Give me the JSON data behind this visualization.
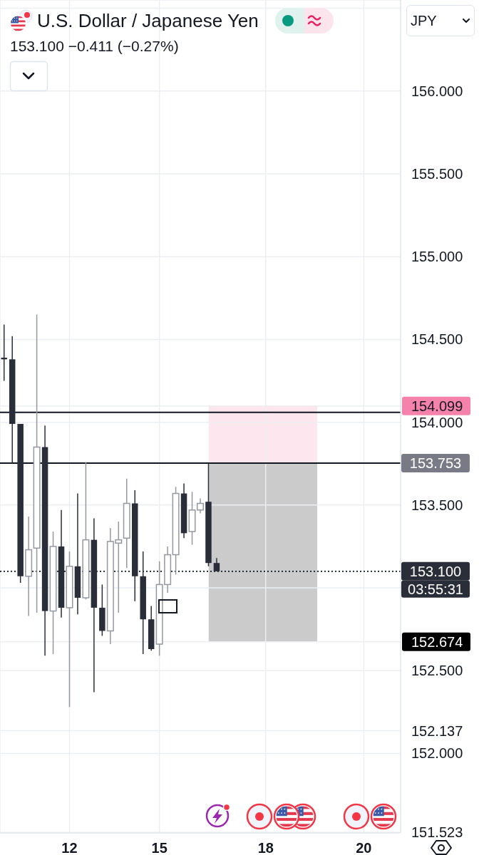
{
  "chart_data": {
    "type": "candlestick",
    "title": "U.S. Dollar / Japanese Yen",
    "subtitle": "153.100 −0.411 (−0.27%)",
    "ylabel": "JPY",
    "categories": [
      null,
      null,
      null,
      null,
      null,
      null,
      null,
      null,
      "12",
      null,
      null,
      null,
      null,
      null,
      null,
      null,
      null,
      null,
      null,
      "15",
      null,
      null,
      null,
      null,
      null,
      null,
      null,
      null,
      null,
      null,
      null,
      null,
      "18",
      null,
      null,
      null,
      null,
      null,
      null,
      null,
      null,
      null,
      null,
      null,
      "20",
      null,
      null,
      null,
      null
    ],
    "ohlc": [
      [
        154.39,
        154.59,
        154.25,
        154.38
      ],
      [
        154.38,
        154.52,
        153.75,
        153.99
      ],
      [
        153.99,
        153.99,
        153.03,
        153.07
      ],
      [
        153.07,
        153.43,
        152.83,
        153.23
      ],
      [
        153.24,
        154.65,
        152.85,
        153.85
      ],
      [
        153.85,
        153.98,
        152.59,
        152.86
      ],
      [
        152.86,
        153.34,
        152.6,
        153.25
      ],
      [
        153.25,
        153.47,
        152.82,
        152.88
      ],
      [
        152.88,
        153.22,
        152.28,
        153.13
      ],
      [
        153.13,
        153.57,
        152.84,
        152.94
      ],
      [
        152.94,
        153.76,
        152.93,
        153.29
      ],
      [
        153.29,
        153.42,
        152.37,
        152.88
      ],
      [
        152.88,
        153.02,
        152.71,
        152.74
      ],
      [
        152.74,
        153.36,
        152.66,
        153.28
      ],
      [
        153.27,
        153.4,
        152.85,
        153.29
      ],
      [
        153.3,
        153.66,
        153.12,
        153.51
      ],
      [
        153.51,
        153.59,
        152.92,
        153.07
      ],
      [
        153.07,
        153.22,
        152.6,
        152.81
      ],
      [
        152.81,
        152.89,
        152.62,
        152.63
      ],
      [
        152.66,
        153.16,
        152.59,
        153.02
      ],
      [
        153.02,
        153.25,
        152.97,
        153.2
      ],
      [
        153.2,
        153.61,
        153.08,
        153.57
      ],
      [
        153.57,
        153.63,
        153.3,
        153.33
      ],
      [
        153.34,
        153.58,
        153.26,
        153.47
      ],
      [
        153.47,
        153.54,
        153.45,
        153.51
      ],
      [
        153.52,
        153.75,
        153.13,
        153.15
      ],
      [
        153.15,
        153.18,
        153.1,
        153.1
      ],
      null,
      null,
      null,
      null,
      null,
      null,
      null,
      null,
      null,
      null,
      null,
      null,
      null,
      null,
      null,
      null,
      null,
      null,
      null,
      null,
      null,
      null
    ],
    "colors": [
      "#2a2e39",
      "#2a2e39",
      "#2a2e39",
      "#9598a1",
      "#9598a1",
      "#2a2e39",
      "#9598a1",
      "#2a2e39",
      "#9598a1",
      "#2a2e39",
      "#9598a1",
      "#2a2e39",
      "#2a2e39",
      "#9598a1",
      "#9598a1",
      "#9598a1",
      "#2a2e39",
      "#2a2e39",
      "#2a2e39",
      "#9598a1",
      "#9598a1",
      "#9598a1",
      "#2a2e39",
      "#9598a1",
      "#9598a1",
      "#2a2e39",
      "#2a2e39",
      null,
      null,
      null,
      null,
      null,
      null,
      null,
      null,
      null,
      null,
      null,
      null,
      null,
      null,
      null,
      null,
      null,
      null,
      null,
      null,
      null,
      null
    ],
    "ylim": [
      151.52,
      156.55
    ],
    "yticks": [
      {
        "value": 151.523,
        "label": "151.523"
      },
      {
        "value": 152,
        "label": "152.000"
      },
      {
        "value": 152.137,
        "label": "152.137"
      },
      {
        "value": 152.5,
        "label": "152.500"
      },
      {
        "value": 152.674,
        "label": "152.674"
      },
      {
        "value": 153,
        "label": null
      },
      {
        "value": 153.5,
        "label": "153.500"
      },
      {
        "value": 154,
        "label": "154.000"
      },
      {
        "value": 154.099,
        "label": "154.099"
      },
      {
        "value": 154.5,
        "label": "154.500"
      },
      {
        "value": 155,
        "label": "155.000"
      },
      {
        "value": 155.5,
        "label": "155.500"
      },
      {
        "value": 156,
        "label": "156.000"
      },
      {
        "value": 156.5,
        "label": null
      }
    ],
    "grid": true,
    "bands": [
      {
        "axis": "y",
        "from": 153.753,
        "to": 154.099,
        "color": "#fde6ee"
      },
      {
        "axis": "y",
        "from": 152.674,
        "to": 153.753,
        "color": "#cbcbcb"
      }
    ],
    "ref_lines": [
      {
        "axis": "y",
        "value": 154.06,
        "line_style": "solid"
      },
      {
        "axis": "y",
        "value": 153.753,
        "label": "153.753",
        "line_style": "solid"
      },
      {
        "axis": "y",
        "value": 153.1,
        "label": "153.100",
        "line_style": "dotted"
      }
    ],
    "annotations": [
      "03:55:31"
    ]
  }
}
